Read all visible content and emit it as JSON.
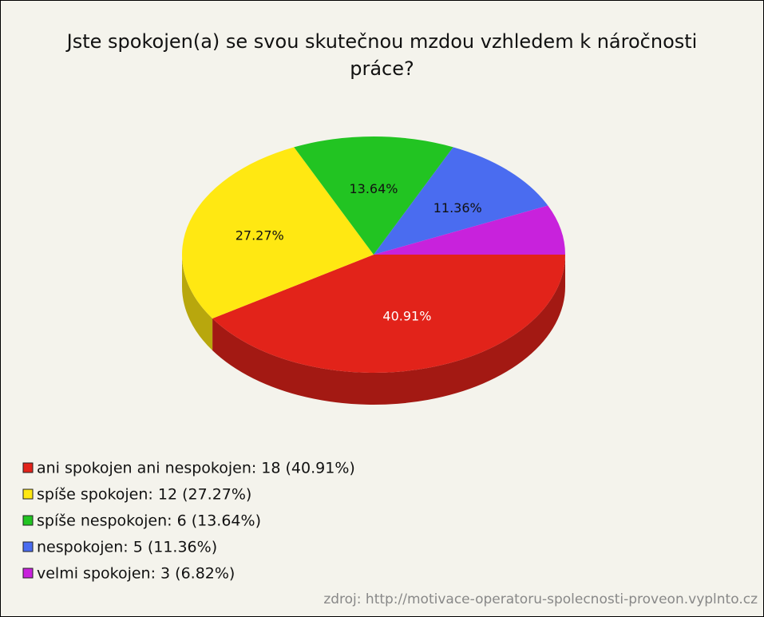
{
  "chart_data": {
    "type": "pie",
    "title": "Jste spokojen(a) se svou skutečnou mzdou vzhledem k náročnosti práce?",
    "categories": [
      "ani spokojen ani nespokojen: 18 (40.91%)",
      "spíše spokojen: 12 (27.27%)",
      "spíše nespokojen: 6 (13.64%)",
      "nespokojen: 5 (11.36%)",
      "velmi spokojen: 3 (6.82%)"
    ],
    "values": [
      40.91,
      27.27,
      13.64,
      11.36,
      6.82
    ],
    "value_labels": [
      "40.91%",
      "27.27%",
      "13.64%",
      "11.36%",
      null
    ],
    "colors": [
      "#e2231a",
      "#ffe812",
      "#22c422",
      "#4a6cf0",
      "#c822dc"
    ],
    "source": "zdroj: http://motivace-operatoru-spolecnosti-proveon.vyplnto.cz"
  }
}
